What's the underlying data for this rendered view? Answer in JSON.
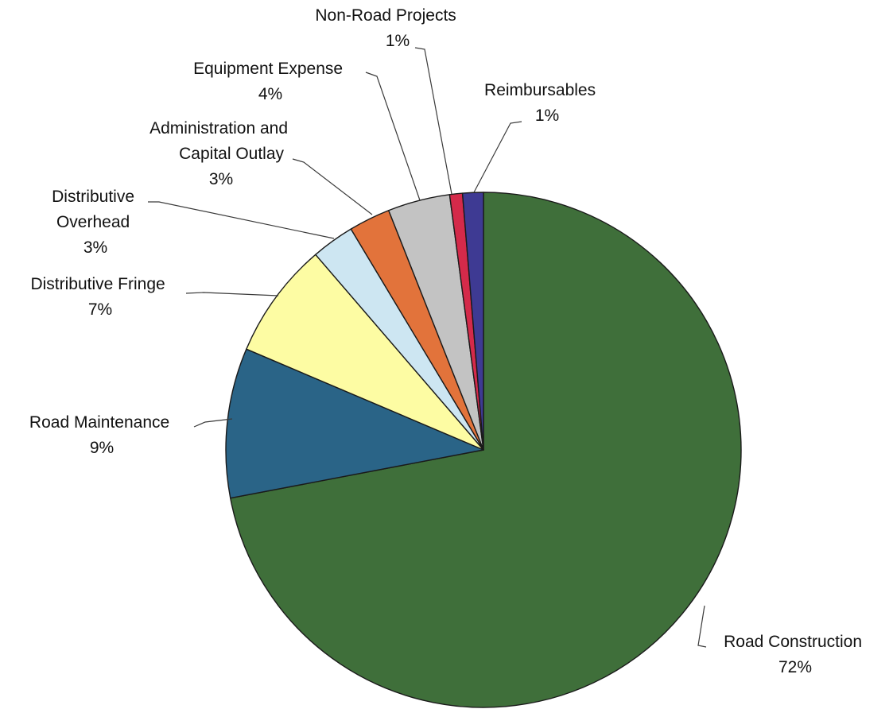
{
  "chart_data": {
    "type": "pie",
    "title": "",
    "slices": [
      {
        "name": "Road Construction",
        "label": "72%",
        "value": 72.0,
        "color": "#3f6f3a"
      },
      {
        "name": "Road Maintenance",
        "label": "9%",
        "value": 9.4,
        "color": "#2a6487"
      },
      {
        "name": "Distributive Fringe",
        "label": "7%",
        "value": 7.3,
        "color": "#fdfca3"
      },
      {
        "name": "Distributive Overhead",
        "label": "3%",
        "value": 2.7,
        "color": "#cde6f2"
      },
      {
        "name": "Administration and Capital Outlay",
        "label": "3%",
        "value": 2.6,
        "color": "#e2733b"
      },
      {
        "name": "Equipment Expense",
        "label": "4%",
        "value": 3.9,
        "color": "#c3c3c3"
      },
      {
        "name": "Non-Road Projects",
        "label": "1%",
        "value": 0.8,
        "color": "#d42a4a"
      },
      {
        "name": "Reimbursables",
        "label": "1%",
        "value": 1.3,
        "color": "#3e3a93"
      }
    ],
    "legend": "none",
    "start": "12 o'clock, clockwise"
  }
}
